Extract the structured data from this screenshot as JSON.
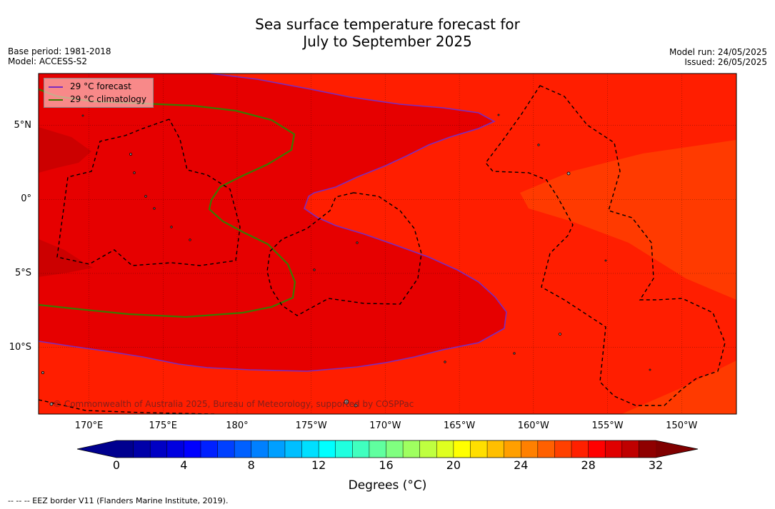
{
  "title": {
    "line1": "Sea surface temperature forecast for",
    "line2": "July to September 2025"
  },
  "meta": {
    "base_period": "Base period: 1981-2018",
    "model": "Model: ACCESS-S2",
    "model_run": "Model run: 24/05/2025",
    "issued": "Issued: 26/05/2025"
  },
  "legend": {
    "forecast": {
      "label": "29 °C  forecast",
      "color": "#7b2cbf"
    },
    "climatology": {
      "label": "29 °C  climatology",
      "color": "#3a7a00"
    }
  },
  "copyright": "© Commonwealth of Australia 2025, Bureau of Meteorology, supported by COSPPac",
  "map": {
    "lon_range": [
      166.6,
      213.7
    ],
    "lat_range": [
      -14.5,
      8.5
    ],
    "lat_ticks": [
      {
        "lat": 5,
        "label": "5°N"
      },
      {
        "lat": 0,
        "label": "0°"
      },
      {
        "lat": -5,
        "label": "5°S"
      },
      {
        "lat": -10,
        "label": "10°S"
      }
    ],
    "lon_ticks": [
      {
        "lon": 170,
        "label": "170°E"
      },
      {
        "lon": 175,
        "label": "175°E"
      },
      {
        "lon": 180,
        "label": "180°"
      },
      {
        "lon": 185,
        "label": "175°W"
      },
      {
        "lon": 190,
        "label": "170°W"
      },
      {
        "lon": 195,
        "label": "165°W"
      },
      {
        "lon": 200,
        "label": "160°W"
      },
      {
        "lon": 205,
        "label": "155°W"
      },
      {
        "lon": 210,
        "label": "150°W"
      }
    ],
    "field_colors": {
      "c27_28": "#ff3a00",
      "c28_29": "#ff1e00",
      "c29_30": "#e60000",
      "c30_31": "#cc0000"
    }
  },
  "colorbar": {
    "min": 0,
    "max": 32,
    "step": 1,
    "colors": [
      "#00008f",
      "#0000a8",
      "#0000c4",
      "#0000e0",
      "#0000ff",
      "#0020ff",
      "#0040ff",
      "#0060ff",
      "#0080ff",
      "#009fff",
      "#00bfff",
      "#00dfff",
      "#00ffff",
      "#20ffdf",
      "#40ffbf",
      "#60ff9f",
      "#80ff80",
      "#9fff60",
      "#bfff40",
      "#dfff20",
      "#ffff00",
      "#ffdf00",
      "#ffbf00",
      "#ff9f00",
      "#ff8000",
      "#ff6000",
      "#ff4000",
      "#ff2000",
      "#ff0000",
      "#e00000",
      "#bf0000",
      "#8f0000"
    ],
    "under_color": "#00008f",
    "over_color": "#800000",
    "tick_labels": [
      "0",
      "4",
      "8",
      "12",
      "16",
      "20",
      "24",
      "28",
      "32"
    ],
    "label": "Degrees (°C)"
  },
  "footnote": "--  --  -- EEZ border V11 (Flanders Marine Institute, 2019)."
}
